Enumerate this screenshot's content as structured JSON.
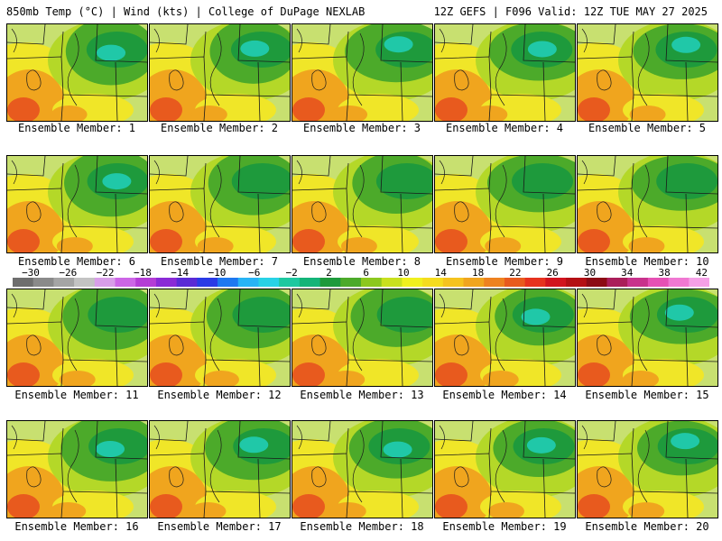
{
  "header": {
    "left_title": "850mb Temp (°C) | Wind (kts) | College of DuPage NEXLAB",
    "right_title": "12Z GEFS | F096 Valid: 12Z TUE MAY 27 2025"
  },
  "panels": [
    {
      "label": "Ensemble Member: 1"
    },
    {
      "label": "Ensemble Member: 2"
    },
    {
      "label": "Ensemble Member: 3"
    },
    {
      "label": "Ensemble Member: 4"
    },
    {
      "label": "Ensemble Member: 5"
    },
    {
      "label": "Ensemble Member: 6"
    },
    {
      "label": "Ensemble Member: 7"
    },
    {
      "label": "Ensemble Member: 8"
    },
    {
      "label": "Ensemble Member: 9"
    },
    {
      "label": "Ensemble Member: 10"
    },
    {
      "label": "Ensemble Member: 11"
    },
    {
      "label": "Ensemble Member: 12"
    },
    {
      "label": "Ensemble Member: 13"
    },
    {
      "label": "Ensemble Member: 14"
    },
    {
      "label": "Ensemble Member: 15"
    },
    {
      "label": "Ensemble Member: 16"
    },
    {
      "label": "Ensemble Member: 17"
    },
    {
      "label": "Ensemble Member: 18"
    },
    {
      "label": "Ensemble Member: 19"
    },
    {
      "label": "Ensemble Member: 20"
    }
  ],
  "colorbar": {
    "tick_labels": [
      "−30",
      "−26",
      "−22",
      "−18",
      "−14",
      "−10",
      "−6",
      "−2",
      "2",
      "6",
      "10",
      "14",
      "18",
      "22",
      "26",
      "30",
      "34",
      "38",
      "42"
    ],
    "colors": [
      "#6e6e6e",
      "#8a8a8a",
      "#a5a5a5",
      "#c3c3c3",
      "#d89ee8",
      "#cc66e6",
      "#b43cd6",
      "#8a2ad6",
      "#5a2ad6",
      "#2a3ae6",
      "#1e78f0",
      "#28b4f5",
      "#28d2e6",
      "#1ec8a0",
      "#14b478",
      "#1e9a3c",
      "#4caa2a",
      "#8cc81e",
      "#c8e01e",
      "#f0f01e",
      "#f5dc1e",
      "#f5c31e",
      "#f0a51e",
      "#ee8220",
      "#e85a1e",
      "#e6321e",
      "#d2141e",
      "#b40f14",
      "#8c0a14",
      "#aa1e5a",
      "#c8328c",
      "#e650b4",
      "#f078d2",
      "#f5a0e6"
    ]
  },
  "colors": {
    "cool_green": "#1e9a3c",
    "cyan": "#20c8a8",
    "mid_green": "#4caa2a",
    "yellow_green": "#b4d828",
    "yellow": "#f0e628",
    "orange": "#f0a51e",
    "red_orange": "#e85a1e"
  }
}
